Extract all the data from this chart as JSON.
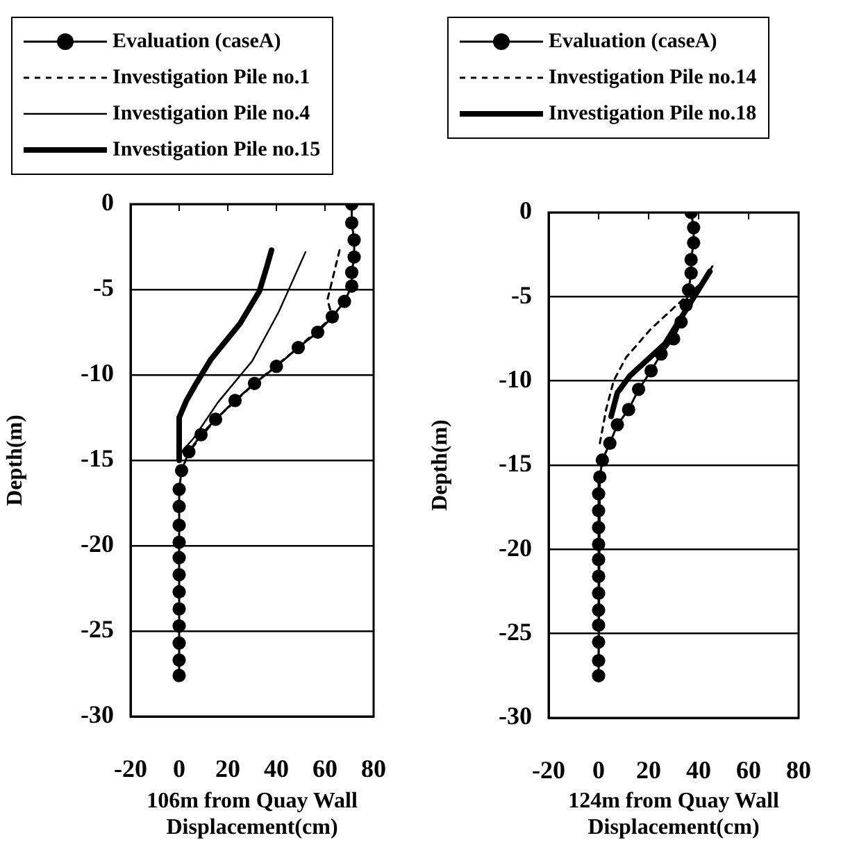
{
  "chart_data": [
    {
      "type": "line",
      "xlabel": "106m from Quay Wall\nDisplacement(cm)",
      "ylabel": "Depth(m)",
      "xlim": [
        -20,
        80
      ],
      "xticks": [
        -20,
        0,
        20,
        40,
        60,
        80
      ],
      "ylim": [
        -30,
        0
      ],
      "yticks": [
        0,
        -5,
        -10,
        -15,
        -20,
        -25,
        -30
      ],
      "grid": "y",
      "legend": "top",
      "series": [
        {
          "name": "Evaluation (caseA)",
          "color": "#000000",
          "marker": "circle",
          "line_style": "solid",
          "x": [
            71,
            71,
            72,
            72,
            71,
            71,
            68,
            63,
            57,
            49,
            40,
            31,
            23,
            15,
            9,
            4,
            1,
            0,
            0,
            0,
            0,
            0,
            0,
            0,
            0,
            0,
            0,
            0,
            0
          ],
          "values": [
            0,
            -1.1,
            -2.1,
            -3.1,
            -4,
            -4.8,
            -5.7,
            -6.6,
            -7.5,
            -8.4,
            -9.5,
            -10.5,
            -11.5,
            -12.6,
            -13.5,
            -14.5,
            -15.6,
            -16.7,
            -17.7,
            -18.8,
            -19.8,
            -20.7,
            -21.7,
            -22.7,
            -23.7,
            -24.7,
            -25.7,
            -26.7,
            -27.6
          ]
        },
        {
          "name": "Investigation Pile no.1",
          "color": "#000000",
          "marker": "none",
          "line_style": "dashed",
          "x": [
            66,
            61,
            63,
            49,
            31,
            15,
            4
          ],
          "values": [
            -2.7,
            -5.6,
            -6.6,
            -8.4,
            -10.5,
            -12.6,
            -14.5
          ]
        },
        {
          "name": "Investigation Pile no.4",
          "color": "#000000",
          "marker": "none",
          "line_style": "solid",
          "x": [
            52,
            41,
            30,
            16,
            6,
            1,
            0
          ],
          "values": [
            -2.8,
            -6.3,
            -9.2,
            -11.6,
            -13.7,
            -14.5,
            -15
          ]
        },
        {
          "name": "Investigation Pile no.15",
          "color": "#000000",
          "marker": "none",
          "line_style": "solid",
          "x": [
            38,
            36,
            33,
            25,
            13,
            7,
            3,
            0,
            0
          ],
          "values": [
            -2.7,
            -3.7,
            -5.1,
            -7,
            -9.1,
            -10.5,
            -11.5,
            -12.5,
            -15
          ]
        }
      ]
    },
    {
      "type": "line",
      "xlabel": "124m from Quay Wall\nDisplacement(cm)",
      "ylabel": "Depth(m)",
      "xlim": [
        -20,
        80
      ],
      "xticks": [
        -20,
        0,
        20,
        40,
        60,
        80
      ],
      "ylim": [
        -30,
        0
      ],
      "yticks": [
        0,
        -5,
        -10,
        -15,
        -20,
        -25,
        -30
      ],
      "grid": "y",
      "legend": "top",
      "series": [
        {
          "name": "Evaluation (caseA)",
          "color": "#000000",
          "marker": "circle",
          "line_style": "solid",
          "x": [
            37,
            38,
            38,
            37,
            37,
            36,
            35,
            33,
            30,
            25,
            21,
            16,
            12,
            7.5,
            4.5,
            1.5,
            0.5,
            0,
            0,
            0,
            0,
            0,
            0,
            0,
            0,
            0,
            0,
            0,
            0
          ],
          "values": [
            0,
            -0.9,
            -1.8,
            -2.8,
            -3.6,
            -4.6,
            -5.5,
            -6.5,
            -7.5,
            -8.4,
            -9.4,
            -10.5,
            -11.7,
            -12.6,
            -13.7,
            -14.7,
            -15.7,
            -16.7,
            -17.7,
            -18.7,
            -19.7,
            -20.6,
            -21.6,
            -22.6,
            -23.6,
            -24.5,
            -25.5,
            -26.6,
            -27.5
          ]
        },
        {
          "name": "Investigation Pile no.14",
          "color": "#000000",
          "marker": "none",
          "line_style": "dashed",
          "x": [
            45.5,
            41,
            32,
            21,
            11,
            6,
            3,
            0.5
          ],
          "values": [
            -3.2,
            -4.2,
            -5.4,
            -6.9,
            -8.6,
            -10,
            -11.7,
            -13.7
          ]
        },
        {
          "name": "Investigation Pile no.18",
          "color": "#000000",
          "marker": "none",
          "line_style": "solid",
          "x": [
            44.5,
            26.5,
            12.5,
            7.5,
            5
          ],
          "values": [
            -3.5,
            -7.8,
            -9.7,
            -10.7,
            -12.1
          ]
        }
      ]
    }
  ]
}
